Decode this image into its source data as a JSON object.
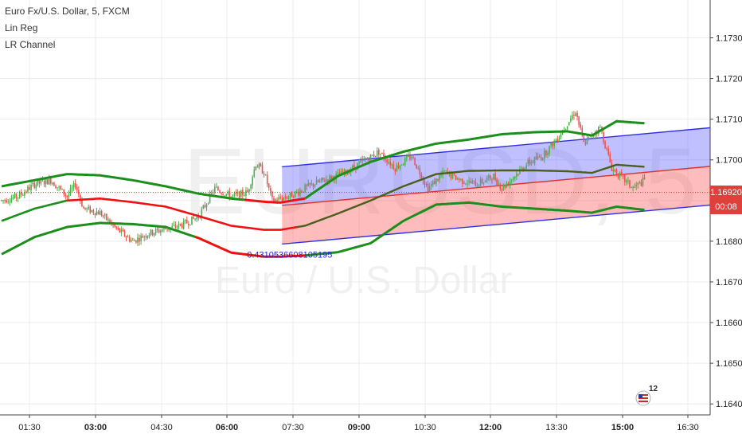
{
  "legend": {
    "symbol": "Euro Fx/U.S. Dollar, 5, FXCM",
    "study1": "Lin Reg",
    "study2": "LR Channel"
  },
  "watermark": {
    "symbol": "EURUSD, 5",
    "description": "Euro / U.S. Dollar"
  },
  "price_axis": {
    "labels": [
      "1.17300",
      "1.17200",
      "1.17100",
      "1.17000",
      "1.16900",
      "1.16800",
      "1.16700",
      "1.16600",
      "1.16500",
      "1.16400"
    ],
    "current_price": "1.16920",
    "countdown": "00:08"
  },
  "time_axis": {
    "labels": [
      "01:30",
      "03:00",
      "04:30",
      "06:00",
      "07:30",
      "09:00",
      "10:30",
      "12:00",
      "13:30",
      "15:00",
      "16:30"
    ],
    "bold_labels": [
      "03:00",
      "06:00",
      "09:00",
      "12:00",
      "15:00"
    ]
  },
  "channel_label": "0.4310536608105195",
  "events": {
    "count": "12",
    "icon": "flag-event-icon"
  },
  "colors": {
    "up": "#4caf50",
    "down": "#ef5350",
    "upper_channel": "#3f3fff",
    "lower_channel": "#ff3333",
    "band_green": "#1b8e1b",
    "band_red": "#ee1111",
    "regline_dark": "#4b5e1b",
    "price_line": "#e03030"
  },
  "chart_data": {
    "type": "candlestick",
    "title": "Euro Fx/U.S. Dollar, 5, FXCM",
    "ylim": [
      1.16373,
      1.17393
    ],
    "y_ticks": [
      1.173,
      1.172,
      1.171,
      1.17,
      1.169,
      1.168,
      1.167,
      1.166,
      1.165,
      1.164
    ],
    "x_ticks": [
      "01:30",
      "03:00",
      "04:30",
      "06:00",
      "07:30",
      "09:00",
      "10:30",
      "12:00",
      "13:30",
      "15:00",
      "16:30"
    ],
    "bar_interval": "5",
    "close_path": [
      [
        0,
        1.169
      ],
      [
        10,
        1.1691
      ],
      [
        20,
        1.1694
      ],
      [
        30,
        1.1695
      ],
      [
        40,
        1.1691
      ],
      [
        45,
        1.1694
      ],
      [
        50,
        1.1688
      ],
      [
        60,
        1.1687
      ],
      [
        70,
        1.1683
      ],
      [
        80,
        1.168
      ],
      [
        90,
        1.1682
      ],
      [
        100,
        1.1683
      ],
      [
        110,
        1.1684
      ],
      [
        120,
        1.1686
      ],
      [
        130,
        1.1693
      ],
      [
        140,
        1.1691
      ],
      [
        150,
        1.1692
      ],
      [
        155,
        1.1699
      ],
      [
        160,
        1.1697
      ],
      [
        165,
        1.169
      ],
      [
        175,
        1.1691
      ],
      [
        190,
        1.1694
      ],
      [
        210,
        1.1697
      ],
      [
        230,
        1.1702
      ],
      [
        240,
        1.1698
      ],
      [
        250,
        1.1701
      ],
      [
        260,
        1.1693
      ],
      [
        270,
        1.1697
      ],
      [
        280,
        1.1695
      ],
      [
        290,
        1.1694
      ],
      [
        300,
        1.1696
      ],
      [
        305,
        1.1693
      ],
      [
        320,
        1.1699
      ],
      [
        330,
        1.1701
      ],
      [
        340,
        1.1706
      ],
      [
        350,
        1.1712
      ],
      [
        355,
        1.1704
      ],
      [
        365,
        1.1708
      ],
      [
        372,
        1.1698
      ],
      [
        385,
        1.1693
      ],
      [
        392,
        1.1695
      ]
    ],
    "series": [
      {
        "name": "Lin Reg",
        "values": "bands"
      },
      {
        "name": "LR Channel",
        "values": "channel"
      }
    ],
    "lr_channel": {
      "start_bar": 171,
      "end_bar": 435,
      "mid": [
        1.16888,
        1.16985
      ],
      "upper": [
        1.16983,
        1.1708
      ],
      "lower": [
        1.16793,
        1.1689
      ],
      "pearson_r": "0.4310536608105195"
    },
    "band_upper": [
      [
        0,
        1.16935
      ],
      [
        20,
        1.1695
      ],
      [
        40,
        1.16965
      ],
      [
        60,
        1.16962
      ],
      [
        80,
        1.1695
      ],
      [
        100,
        1.16935
      ],
      [
        120,
        1.16917
      ],
      [
        140,
        1.16905
      ],
      [
        160,
        1.16897
      ],
      [
        170,
        1.16895
      ],
      [
        185,
        1.16905
      ],
      [
        205,
        1.1696
      ],
      [
        225,
        1.16995
      ],
      [
        245,
        1.1702
      ],
      [
        265,
        1.1704
      ],
      [
        285,
        1.1705
      ],
      [
        305,
        1.17063
      ],
      [
        325,
        1.17068
      ],
      [
        345,
        1.1707
      ],
      [
        360,
        1.1706
      ],
      [
        375,
        1.17095
      ],
      [
        392,
        1.1709
      ]
    ],
    "band_lower": [
      [
        0,
        1.16768
      ],
      [
        20,
        1.1681
      ],
      [
        40,
        1.16835
      ],
      [
        60,
        1.16845
      ],
      [
        80,
        1.16842
      ],
      [
        100,
        1.16835
      ],
      [
        120,
        1.16808
      ],
      [
        140,
        1.16772
      ],
      [
        160,
        1.16762
      ],
      [
        170,
        1.16762
      ],
      [
        185,
        1.16765
      ],
      [
        205,
        1.16773
      ],
      [
        225,
        1.16795
      ],
      [
        245,
        1.1685
      ],
      [
        265,
        1.1689
      ],
      [
        285,
        1.16895
      ],
      [
        305,
        1.16885
      ],
      [
        325,
        1.1688
      ],
      [
        345,
        1.16875
      ],
      [
        360,
        1.1687
      ],
      [
        375,
        1.16885
      ],
      [
        392,
        1.16877
      ]
    ],
    "band_mid": [
      [
        0,
        1.1685
      ],
      [
        20,
        1.1688
      ],
      [
        40,
        1.169
      ],
      [
        60,
        1.16905
      ],
      [
        80,
        1.16896
      ],
      [
        100,
        1.16885
      ],
      [
        120,
        1.16862
      ],
      [
        140,
        1.16838
      ],
      [
        160,
        1.16828
      ],
      [
        170,
        1.16828
      ],
      [
        185,
        1.16838
      ],
      [
        205,
        1.16868
      ],
      [
        225,
        1.169
      ],
      [
        245,
        1.16935
      ],
      [
        265,
        1.16965
      ],
      [
        285,
        1.16973
      ],
      [
        305,
        1.16974
      ],
      [
        325,
        1.16974
      ],
      [
        345,
        1.16972
      ],
      [
        360,
        1.16968
      ],
      [
        375,
        1.16988
      ],
      [
        392,
        1.16983
      ]
    ],
    "current_price": 1.1692
  }
}
